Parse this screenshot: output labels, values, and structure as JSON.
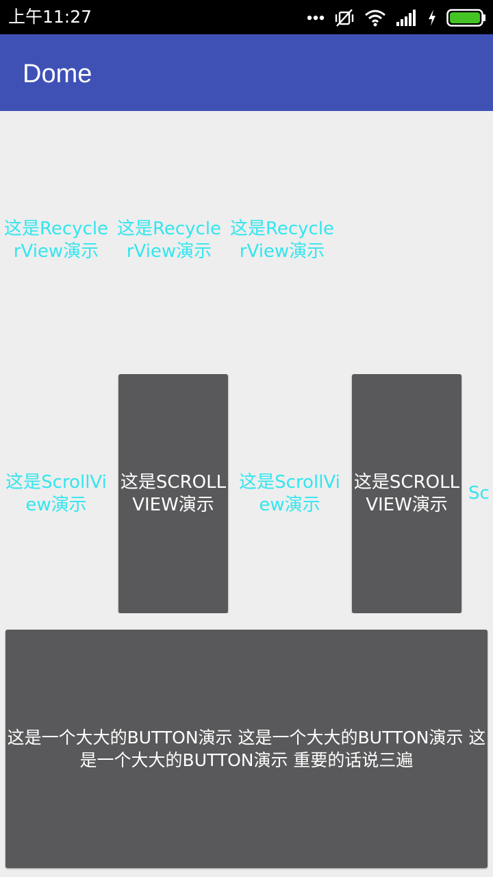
{
  "status_bar": {
    "time": "上午11:27",
    "icons": [
      "more-dots-icon",
      "vibrate-off-icon",
      "wifi-icon",
      "signal-icon",
      "charging-icon",
      "battery-icon"
    ],
    "battery_color": "#44c424"
  },
  "app_bar": {
    "title": "Dome",
    "color": "#3f51b5"
  },
  "recycler_items": [
    {
      "label": "这是RecyclerView演示"
    },
    {
      "label": "这是RecyclerView演示"
    },
    {
      "label": "这是RecyclerView演示"
    }
  ],
  "scroll_items": [
    {
      "label": "这是ScrollView演示"
    },
    {
      "label": "这是SCROLLVIEW演示"
    },
    {
      "label": "这是ScrollView演示"
    },
    {
      "label": "这是SCROLLVIEW演示"
    },
    {
      "label": "Sc"
    }
  ],
  "big_button": {
    "label": "这是一个大大的BUTTON演示 这是一个大大的BUTTON演示 这是一个大大的BUTTON演示 重要的话说三遍"
  },
  "colors": {
    "accent_text": "#33e5ee",
    "button_bg": "#59595b",
    "background": "#eeeeee"
  }
}
